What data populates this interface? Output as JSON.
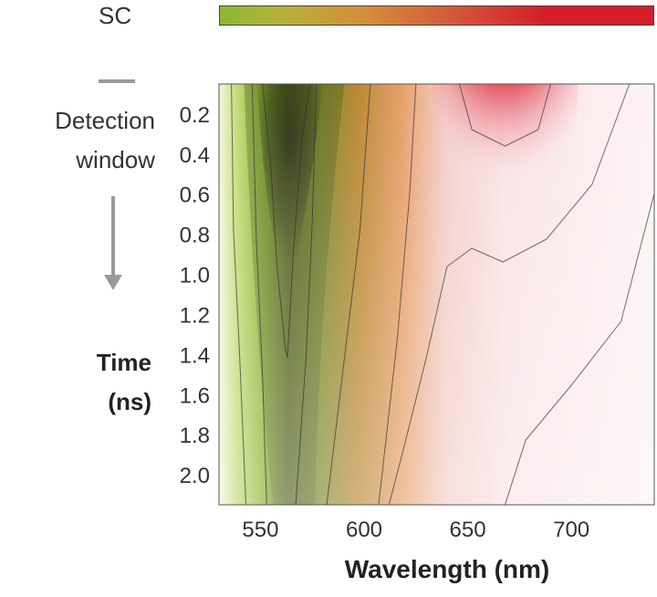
{
  "chart_data": {
    "type": "heatmap",
    "title": "",
    "xlabel": "Wavelength (nm)",
    "ylabel_lines": [
      "Time",
      "(ns)"
    ],
    "side_labels": [
      "Detection",
      "window"
    ],
    "colorbar_label": "SC",
    "xlim": [
      530,
      740
    ],
    "ylim": [
      0.05,
      2.15
    ],
    "x_ticks": [
      550,
      600,
      650,
      700
    ],
    "y_ticks": [
      0.2,
      0.4,
      0.6,
      0.8,
      1.0,
      1.2,
      1.4,
      1.6,
      1.8,
      2.0
    ],
    "y_tick_labels": [
      "0.2",
      "0.4",
      "0.6",
      "0.8",
      "1.0",
      "1.2",
      "1.4",
      "1.6",
      "1.8",
      "2.0"
    ],
    "colors": {
      "green": "#8cb832",
      "dark": "#2a2a1a",
      "orange": "#d68a3a",
      "red": "#d41e2a",
      "pale": "#fbeef0"
    },
    "features": [
      {
        "name": "green band center",
        "wavelength_nm": 565,
        "time_range_ns": [
          0.05,
          2.15
        ]
      },
      {
        "name": "red peak",
        "wavelength_nm": 668,
        "time_range_ns": [
          0.05,
          0.5
        ]
      }
    ]
  }
}
